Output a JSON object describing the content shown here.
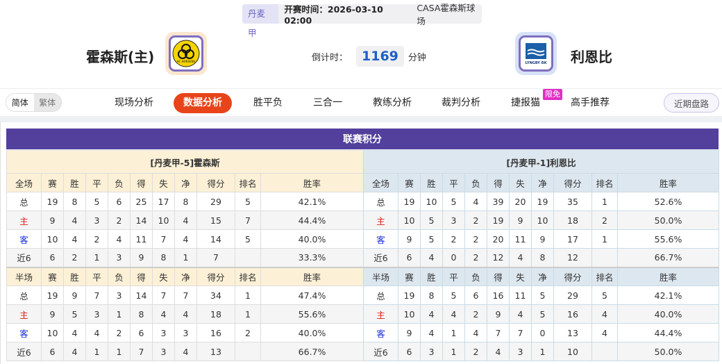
{
  "header": {
    "league": "丹麦甲",
    "kickoff_label": "开赛时间：2026-03-10 02:00",
    "venue": "CASA霍森斯球场",
    "home_team": "霍森斯(主)",
    "away_team": "利恩比",
    "home_logo_text": "AC HORSENS",
    "away_logo_text": "LYNGBY BK",
    "countdown_label": "倒计时：",
    "countdown_value": "1169",
    "countdown_unit": "分钟"
  },
  "lang": {
    "simplified": "简体",
    "traditional": "繁体"
  },
  "nav": {
    "items": [
      "现场分析",
      "数据分析",
      "胜平负",
      "三合一",
      "教练分析",
      "裁判分析",
      "捷报猫",
      "高手推荐"
    ],
    "active": "数据分析",
    "badge": "限免",
    "recent": "近期盘路"
  },
  "standings": {
    "title": "联赛积分",
    "home": {
      "label": "[丹麦甲-5]霍森斯",
      "full": {
        "header": [
          "全场",
          "赛",
          "胜",
          "平",
          "负",
          "得",
          "失",
          "净",
          "得分",
          "排名",
          "胜率"
        ],
        "rows": [
          [
            "总",
            "19",
            "8",
            "5",
            "6",
            "25",
            "17",
            "8",
            "29",
            "5",
            "42.1%"
          ],
          [
            "主",
            "9",
            "4",
            "3",
            "2",
            "14",
            "10",
            "4",
            "15",
            "7",
            "44.4%"
          ],
          [
            "客",
            "10",
            "4",
            "2",
            "4",
            "11",
            "7",
            "4",
            "14",
            "5",
            "40.0%"
          ],
          [
            "近6",
            "6",
            "2",
            "1",
            "3",
            "9",
            "8",
            "1",
            "7",
            "",
            "33.3%"
          ]
        ]
      },
      "half": {
        "header": [
          "半场",
          "赛",
          "胜",
          "平",
          "负",
          "得",
          "失",
          "净",
          "得分",
          "排名",
          "胜率"
        ],
        "rows": [
          [
            "总",
            "19",
            "9",
            "7",
            "3",
            "14",
            "7",
            "7",
            "34",
            "1",
            "47.4%"
          ],
          [
            "主",
            "9",
            "5",
            "3",
            "1",
            "8",
            "4",
            "4",
            "18",
            "1",
            "55.6%"
          ],
          [
            "客",
            "10",
            "4",
            "4",
            "2",
            "6",
            "3",
            "3",
            "16",
            "2",
            "40.0%"
          ],
          [
            "近6",
            "6",
            "4",
            "1",
            "1",
            "7",
            "3",
            "4",
            "13",
            "",
            "66.7%"
          ]
        ]
      }
    },
    "away": {
      "label": "[丹麦甲-1]利恩比",
      "full": {
        "header": [
          "全场",
          "赛",
          "胜",
          "平",
          "负",
          "得",
          "失",
          "净",
          "得分",
          "排名",
          "胜率"
        ],
        "rows": [
          [
            "总",
            "19",
            "10",
            "5",
            "4",
            "39",
            "20",
            "19",
            "35",
            "1",
            "52.6%"
          ],
          [
            "主",
            "10",
            "5",
            "3",
            "2",
            "19",
            "9",
            "10",
            "18",
            "2",
            "50.0%"
          ],
          [
            "客",
            "9",
            "5",
            "2",
            "2",
            "20",
            "11",
            "9",
            "17",
            "1",
            "55.6%"
          ],
          [
            "近6",
            "6",
            "4",
            "0",
            "2",
            "12",
            "4",
            "8",
            "12",
            "",
            "66.7%"
          ]
        ]
      },
      "half": {
        "header": [
          "半场",
          "赛",
          "胜",
          "平",
          "负",
          "得",
          "失",
          "净",
          "得分",
          "排名",
          "胜率"
        ],
        "rows": [
          [
            "总",
            "19",
            "8",
            "5",
            "6",
            "16",
            "11",
            "5",
            "29",
            "5",
            "42.1%"
          ],
          [
            "主",
            "10",
            "4",
            "4",
            "2",
            "9",
            "4",
            "5",
            "16",
            "4",
            "40.0%"
          ],
          [
            "客",
            "9",
            "4",
            "1",
            "4",
            "7",
            "7",
            "0",
            "13",
            "4",
            "44.4%"
          ],
          [
            "近6",
            "6",
            "3",
            "1",
            "2",
            "4",
            "3",
            "1",
            "10",
            "",
            "50.0%"
          ]
        ]
      }
    }
  },
  "colors": {
    "accent": "#e8441a",
    "title_bar": "#52409c",
    "home_header": "#fcf0d6",
    "away_header": "#dde7ef",
    "home_mark": "#e01b1b",
    "away_mark": "#1a2fd6"
  }
}
